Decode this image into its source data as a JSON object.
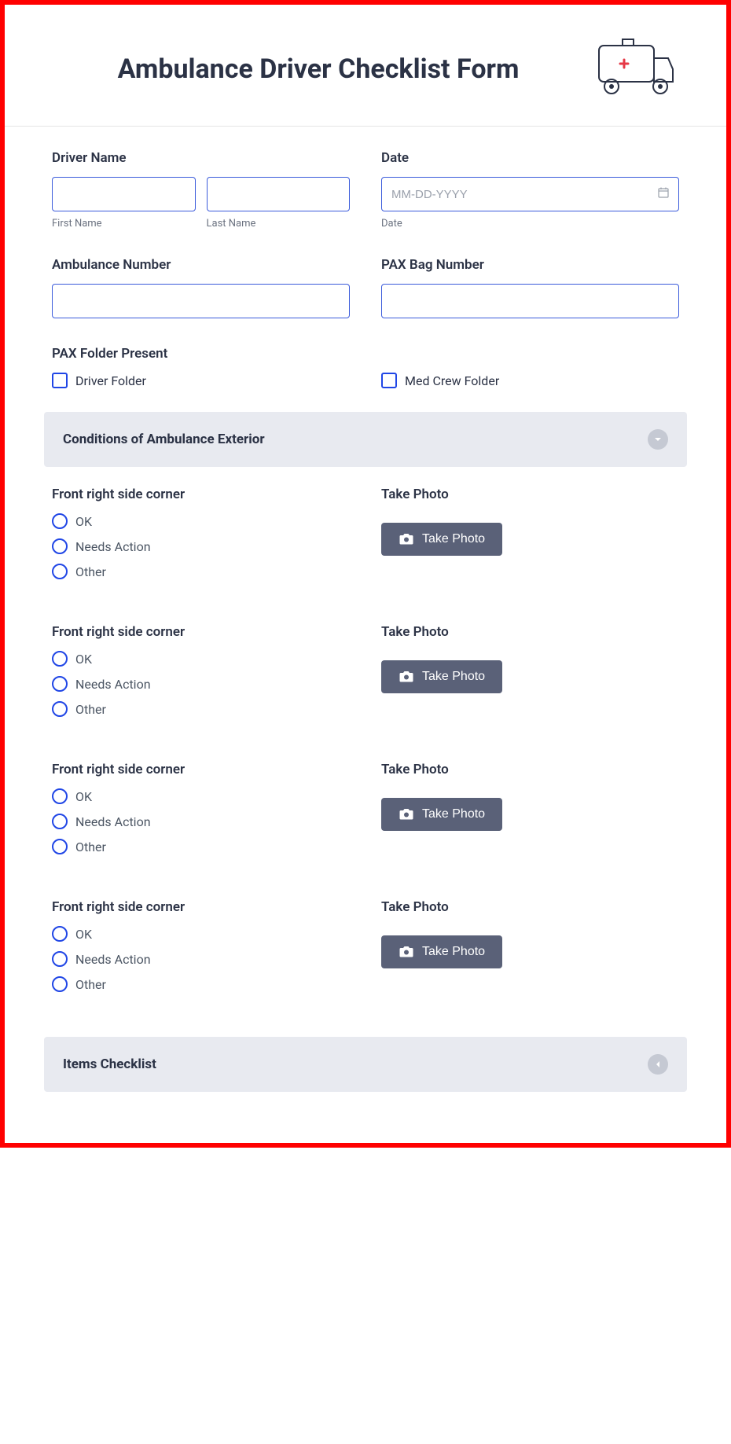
{
  "header": {
    "title": "Ambulance Driver Checklist Form"
  },
  "fields": {
    "driver_name_label": "Driver Name",
    "first_name_sublabel": "First Name",
    "last_name_sublabel": "Last Name",
    "date_label": "Date",
    "date_placeholder": "MM-DD-YYYY",
    "date_sublabel": "Date",
    "ambulance_number_label": "Ambulance Number",
    "pax_bag_label": "PAX Bag Number",
    "pax_folder_label": "PAX Folder Present",
    "driver_folder_label": "Driver Folder",
    "med_crew_folder_label": "Med Crew Folder"
  },
  "sections": {
    "exterior_title": "Conditions of Ambulance Exterior",
    "items_title": "Items Checklist"
  },
  "condition": {
    "question_label": "Front right side corner",
    "photo_label": "Take Photo",
    "photo_button": "Take Photo",
    "radio_ok": "OK",
    "radio_needs_action": "Needs Action",
    "radio_other": "Other"
  },
  "colors": {
    "frame_border": "#ff0000",
    "text_primary": "#2b3245",
    "text_secondary": "#6b7280",
    "input_border": "#3b5bdb",
    "checkbox_border": "#2046e6",
    "section_bg": "#e8eaf0",
    "button_bg": "#5a6178",
    "collapse_bg": "#c5c9d3"
  }
}
